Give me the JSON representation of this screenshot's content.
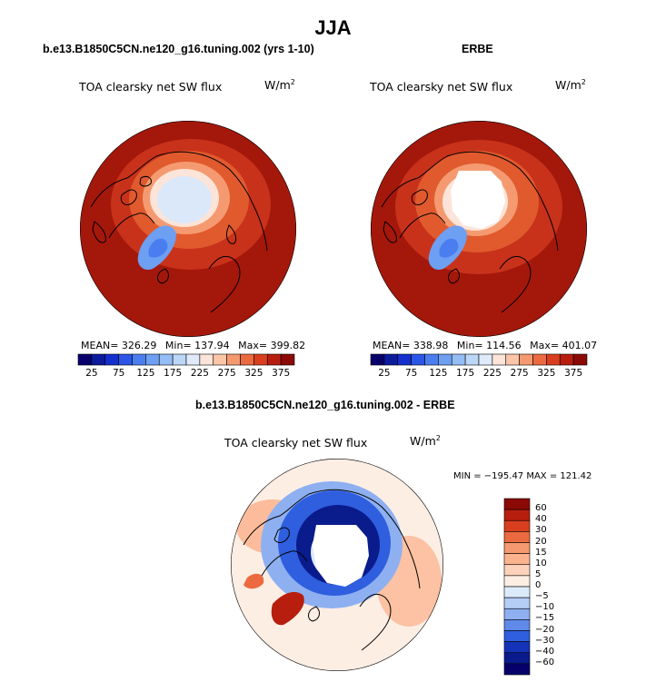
{
  "figure": {
    "title": "JJA"
  },
  "panels": {
    "model": {
      "title": "b.e13.B1850C5CN.ne120_g16.tuning.002 (yrs 1-10)",
      "field": "TOA clearsky net SW flux",
      "units": "W/m",
      "units_sup": "2",
      "mean": "MEAN= 326.29",
      "min": "Min= 137.94",
      "max": "Max= 399.82"
    },
    "obs": {
      "title": "ERBE",
      "field": "TOA clearsky net SW flux",
      "units": "W/m",
      "units_sup": "2",
      "mean": "MEAN= 338.98",
      "min": "Min= 114.56",
      "max": "Max= 401.07"
    },
    "diff": {
      "title": "b.e13.B1850C5CN.ne120_g16.tuning.002 - ERBE",
      "field": "TOA clearsky net SW flux",
      "units": "W/m",
      "units_sup": "2",
      "minmax": "MIN = −195.47  MAX = 121.42"
    }
  },
  "chart_data": [
    {
      "type": "heatmap",
      "projection": "north polar stereographic",
      "title": "b.e13.B1850C5CN.ne120_g16.tuning.002 (yrs 1-10)",
      "field": "TOA clearsky net SW flux",
      "units": "W/m^2",
      "mean": 326.29,
      "min": 137.94,
      "max": 399.82,
      "colorbar": {
        "orientation": "horizontal",
        "tick_labels": [
          "25",
          "75",
          "125",
          "175",
          "225",
          "275",
          "325",
          "375"
        ],
        "levels": [
          25,
          50,
          75,
          100,
          125,
          150,
          175,
          200,
          225,
          250,
          275,
          300,
          325,
          350,
          375
        ],
        "colors": [
          "#08006b",
          "#0c1a9c",
          "#1330cc",
          "#2a55e6",
          "#4a7ef0",
          "#6d9ff2",
          "#94bdf5",
          "#bcd6f8",
          "#dfeafb",
          "#fde4d8",
          "#fbc5a8",
          "#f59a70",
          "#ec6a40",
          "#d93f1e",
          "#b71e0d",
          "#8b0a05"
        ]
      }
    },
    {
      "type": "heatmap",
      "projection": "north polar stereographic",
      "title": "ERBE",
      "field": "TOA clearsky net SW flux",
      "units": "W/m^2",
      "mean": 338.98,
      "min": 114.56,
      "max": 401.07,
      "colorbar": {
        "orientation": "horizontal",
        "tick_labels": [
          "25",
          "75",
          "125",
          "175",
          "225",
          "275",
          "325",
          "375"
        ],
        "levels": [
          25,
          50,
          75,
          100,
          125,
          150,
          175,
          200,
          225,
          250,
          275,
          300,
          325,
          350,
          375
        ],
        "colors": [
          "#08006b",
          "#0c1a9c",
          "#1330cc",
          "#2a55e6",
          "#4a7ef0",
          "#6d9ff2",
          "#94bdf5",
          "#bcd6f8",
          "#dfeafb",
          "#fde4d8",
          "#fbc5a8",
          "#f59a70",
          "#ec6a40",
          "#d93f1e",
          "#b71e0d",
          "#8b0a05"
        ]
      }
    },
    {
      "type": "heatmap",
      "projection": "north polar stereographic",
      "title": "b.e13.B1850C5CN.ne120_g16.tuning.002 - ERBE",
      "field": "TOA clearsky net SW flux",
      "units": "W/m^2",
      "min": -195.47,
      "max": 121.42,
      "colorbar": {
        "orientation": "vertical",
        "tick_labels": [
          "60",
          "40",
          "30",
          "20",
          "15",
          "10",
          "5",
          "0",
          "−5",
          "−10",
          "−15",
          "−20",
          "−30",
          "−40",
          "−60"
        ],
        "colors": [
          "#8b0a05",
          "#b71e0d",
          "#d93f1e",
          "#ec6a40",
          "#f59a70",
          "#fbb38e",
          "#fdd2bb",
          "#fdeee4",
          "#dcebfa",
          "#b4cef6",
          "#8eb0f1",
          "#5f8aea",
          "#2f5fdf",
          "#1433b8",
          "#0a1b8c",
          "#06006a"
        ]
      }
    }
  ]
}
